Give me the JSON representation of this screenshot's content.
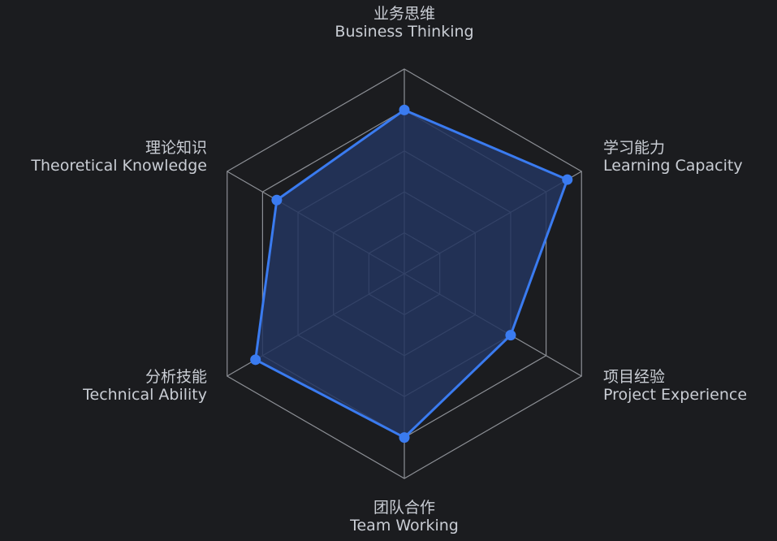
{
  "chart_data": {
    "type": "radar",
    "indicators": [
      {
        "name_cn": "业务思维",
        "name_en": "Business Thinking"
      },
      {
        "name_cn": "学习能力",
        "name_en": "Learning Capacity"
      },
      {
        "name_cn": "项目经验",
        "name_en": "Project Experience"
      },
      {
        "name_cn": "团队合作",
        "name_en": "Team Working"
      },
      {
        "name_cn": "分析技能",
        "name_en": "Technical Ability"
      },
      {
        "name_cn": "理论知识",
        "name_en": "Theoretical Knowledge"
      }
    ],
    "max": 5,
    "series": [
      {
        "values": [
          4,
          4.6,
          3,
          4,
          4.2,
          3.6
        ]
      }
    ],
    "split_number": 5,
    "colors": {
      "background": "#1b1c1f",
      "grid": "#8c8f95",
      "line": "#3a7bf0",
      "area": "#23355f",
      "label": "#c9cdd4"
    }
  }
}
